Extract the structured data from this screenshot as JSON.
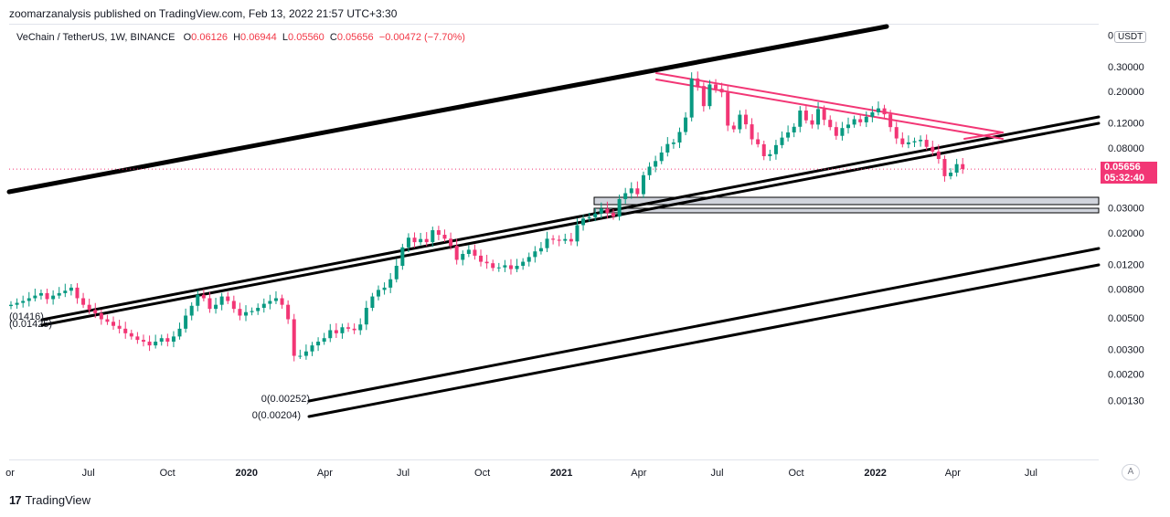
{
  "publisher_line": "zoomarzanalysis published on TradingView.com, Feb 13, 2022 21:57 UTC+3:30",
  "legend": {
    "symbol": "VeChain / TetherUS, 1W, BINANCE",
    "o_key": "O",
    "o_val": "0.06126",
    "h_key": "H",
    "h_val": "0.06944",
    "l_key": "L",
    "l_val": "0.05560",
    "c_key": "C",
    "c_val": "0.05656",
    "change": "−0.00472 (−7.70%)"
  },
  "price_badge": {
    "price": "0.05656",
    "countdown": "05:32:40",
    "color": "#f23675"
  },
  "currency_label": "USDT",
  "auto_button": "A",
  "footer_brand": "TradingView",
  "colors": {
    "up": "#089981",
    "down": "#f23675",
    "trend": "#000000",
    "triangle": "#f23675",
    "zone": "#d1d4dc"
  },
  "chart_data": {
    "type": "candlestick",
    "title": "VeChain / TetherUS, 1W, BINANCE",
    "y_scale": "log",
    "ylim": [
      0.0011,
      0.55
    ],
    "y_ticks": [
      "0.50000",
      "0.30000",
      "0.20000",
      "0.12000",
      "0.08000",
      "0.05000",
      "0.03000",
      "0.02000",
      "0.01200",
      "0.00800",
      "0.00500",
      "0.00300",
      "0.00200",
      "0.00130"
    ],
    "y_tick_values": [
      0.5,
      0.3,
      0.2,
      0.12,
      0.08,
      0.05,
      0.03,
      0.02,
      0.012,
      0.008,
      0.005,
      0.003,
      0.002,
      0.0013
    ],
    "x_ticks": [
      {
        "label": "or",
        "date": "2019-04-01",
        "bold": false
      },
      {
        "label": "Jul",
        "date": "2019-07-01",
        "bold": false
      },
      {
        "label": "Oct",
        "date": "2019-10-01",
        "bold": false
      },
      {
        "label": "2020",
        "date": "2020-01-01",
        "bold": true
      },
      {
        "label": "Apr",
        "date": "2020-04-01",
        "bold": false
      },
      {
        "label": "Jul",
        "date": "2020-07-01",
        "bold": false
      },
      {
        "label": "Oct",
        "date": "2020-10-01",
        "bold": false
      },
      {
        "label": "2021",
        "date": "2021-01-01",
        "bold": true
      },
      {
        "label": "Apr",
        "date": "2021-04-01",
        "bold": false
      },
      {
        "label": "Jul",
        "date": "2021-07-01",
        "bold": false
      },
      {
        "label": "Oct",
        "date": "2021-10-01",
        "bold": false
      },
      {
        "label": "2022",
        "date": "2022-01-01",
        "bold": true
      },
      {
        "label": "Apr",
        "date": "2022-04-01",
        "bold": false
      },
      {
        "label": "Jul",
        "date": "2022-07-01",
        "bold": false
      }
    ],
    "closes": [
      0.0062,
      0.0064,
      0.0066,
      0.0069,
      0.0072,
      0.0075,
      0.0068,
      0.0072,
      0.0075,
      0.0078,
      0.0082,
      0.0069,
      0.0062,
      0.0057,
      0.0054,
      0.0049,
      0.0047,
      0.0044,
      0.0042,
      0.0039,
      0.0037,
      0.0035,
      0.0034,
      0.0032,
      0.0034,
      0.0036,
      0.0034,
      0.0037,
      0.0042,
      0.0052,
      0.0061,
      0.0073,
      0.0069,
      0.0058,
      0.0062,
      0.0071,
      0.0066,
      0.0058,
      0.0052,
      0.0055,
      0.0056,
      0.0059,
      0.0063,
      0.0066,
      0.0069,
      0.0062,
      0.0049,
      0.0027,
      0.0027,
      0.0029,
      0.0032,
      0.0034,
      0.0036,
      0.0041,
      0.0039,
      0.0043,
      0.0042,
      0.0041,
      0.0045,
      0.0059,
      0.0071,
      0.0079,
      0.0082,
      0.0094,
      0.0117,
      0.0158,
      0.0185,
      0.0172,
      0.0181,
      0.0172,
      0.0209,
      0.0194,
      0.0182,
      0.0162,
      0.0129,
      0.0142,
      0.0152,
      0.0138,
      0.0125,
      0.0122,
      0.0113,
      0.0114,
      0.0118,
      0.0111,
      0.0117,
      0.0125,
      0.0135,
      0.0148,
      0.0156,
      0.0182,
      0.0179,
      0.0176,
      0.0181,
      0.0174,
      0.0227,
      0.0253,
      0.0258,
      0.0274,
      0.0297,
      0.0277,
      0.0261,
      0.0347,
      0.0382,
      0.0413,
      0.0376,
      0.0512,
      0.0588,
      0.0645,
      0.0741,
      0.0851,
      0.0872,
      0.1035,
      0.1311,
      0.2477,
      0.2189,
      0.1578,
      0.2246,
      0.2091,
      0.1972,
      0.1149,
      0.1082,
      0.1372,
      0.1173,
      0.0919,
      0.0848,
      0.0698,
      0.0721,
      0.0836,
      0.0945,
      0.1028,
      0.1127,
      0.1468,
      0.1252,
      0.1168,
      0.1504,
      0.1262,
      0.1121,
      0.0972,
      0.1104,
      0.1168,
      0.1275,
      0.1212,
      0.1326,
      0.1427,
      0.1521,
      0.1381,
      0.1121,
      0.0932,
      0.0848,
      0.0874,
      0.0891,
      0.0911,
      0.0813,
      0.0753,
      0.0667,
      0.0504,
      0.0534,
      0.0613,
      0.0566
    ],
    "last_close": 0.05656
  }
}
